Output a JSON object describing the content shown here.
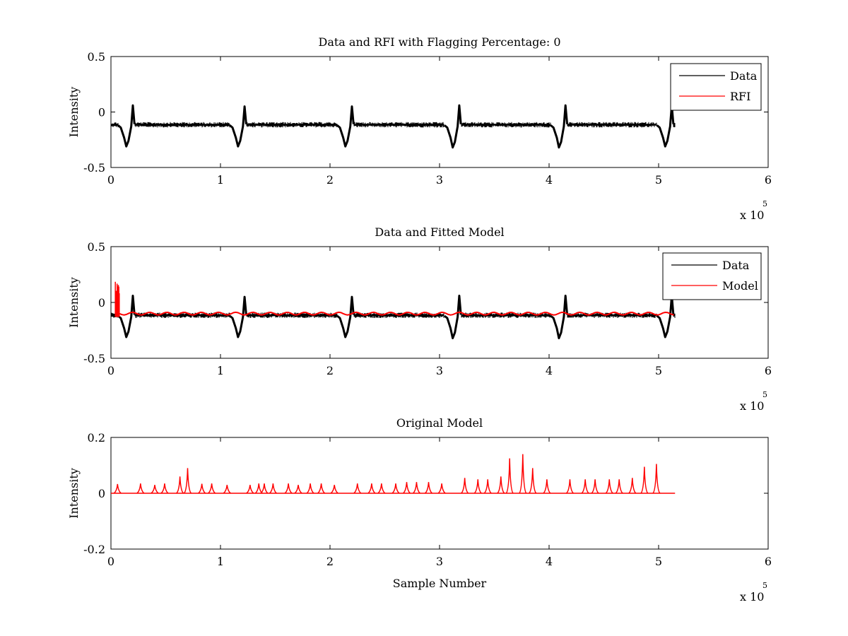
{
  "chart_data": [
    {
      "type": "line",
      "title": "Data and RFI with Flagging Percentage: 0",
      "xlabel": "",
      "ylabel": "Intensity",
      "xlim": [
        0,
        6
      ],
      "ylim": [
        -0.5,
        0.5
      ],
      "x_ticks": [
        "0",
        "1",
        "2",
        "3",
        "4",
        "5",
        "6"
      ],
      "y_ticks": [
        "-0.5",
        "0",
        "0.5"
      ],
      "x_multiplier": "x 10",
      "x_multiplier_exp": "5",
      "legend_position": "top-right",
      "legend": [
        "Data",
        "RFI"
      ],
      "series": [
        {
          "name": "Data",
          "color": "#000000",
          "baseline": -0.11,
          "noise_band": [
            -0.15,
            -0.08
          ],
          "x_end": 5.15,
          "excursions": [
            {
              "x": 0.14,
              "min": -0.31,
              "max": 0.06
            },
            {
              "x": 1.16,
              "min": -0.31,
              "max": 0.05
            },
            {
              "x": 2.14,
              "min": -0.31,
              "max": 0.05
            },
            {
              "x": 3.12,
              "min": -0.32,
              "max": 0.06
            },
            {
              "x": 4.09,
              "min": -0.32,
              "max": 0.06
            },
            {
              "x": 5.06,
              "min": -0.31,
              "max": 0.06
            }
          ]
        },
        {
          "name": "RFI",
          "color": "#ff0000",
          "values": []
        }
      ]
    },
    {
      "type": "line",
      "title": "Data and Fitted Model",
      "xlabel": "",
      "ylabel": "Intensity",
      "xlim": [
        0,
        6
      ],
      "ylim": [
        -0.5,
        0.5
      ],
      "x_ticks": [
        "0",
        "1",
        "2",
        "3",
        "4",
        "5",
        "6"
      ],
      "y_ticks": [
        "-0.5",
        "0",
        "0.5"
      ],
      "x_multiplier": "x 10",
      "x_multiplier_exp": "5",
      "legend_position": "top-right",
      "legend": [
        "Data",
        "Model"
      ],
      "series": [
        {
          "name": "Data",
          "color": "#000000",
          "baseline": -0.11,
          "noise_band": [
            -0.15,
            -0.08
          ],
          "x_end": 5.15,
          "excursions": [
            {
              "x": 0.14,
              "min": -0.31,
              "max": 0.06
            },
            {
              "x": 1.16,
              "min": -0.31,
              "max": 0.05
            },
            {
              "x": 2.14,
              "min": -0.31,
              "max": 0.05
            },
            {
              "x": 3.12,
              "min": -0.32,
              "max": 0.06
            },
            {
              "x": 4.09,
              "min": -0.32,
              "max": 0.06
            },
            {
              "x": 5.06,
              "min": -0.31,
              "max": 0.06
            }
          ]
        },
        {
          "name": "Model",
          "color": "#ff0000",
          "baseline": -0.1,
          "x_end": 5.15,
          "spike": {
            "x_range": [
              0.04,
              0.08
            ],
            "max": 0.2
          }
        }
      ]
    },
    {
      "type": "line",
      "title": "Original Model",
      "xlabel": "Sample Number",
      "ylabel": "Intensity",
      "xlim": [
        0,
        6
      ],
      "ylim": [
        -0.2,
        0.2
      ],
      "x_ticks": [
        "0",
        "1",
        "2",
        "3",
        "4",
        "5",
        "6"
      ],
      "y_ticks": [
        "-0.2",
        "0",
        "0.2"
      ],
      "x_multiplier": "x 10",
      "x_multiplier_exp": "5",
      "series": [
        {
          "name": "Model",
          "color": "#ff0000",
          "baseline": 0,
          "x_end": 5.15,
          "peaks": [
            {
              "x": 0.06,
              "y": 0.033
            },
            {
              "x": 0.27,
              "y": 0.035
            },
            {
              "x": 0.4,
              "y": 0.03
            },
            {
              "x": 0.49,
              "y": 0.035
            },
            {
              "x": 0.63,
              "y": 0.06
            },
            {
              "x": 0.7,
              "y": 0.09
            },
            {
              "x": 0.83,
              "y": 0.034
            },
            {
              "x": 0.92,
              "y": 0.035
            },
            {
              "x": 1.06,
              "y": 0.03
            },
            {
              "x": 1.27,
              "y": 0.03
            },
            {
              "x": 1.35,
              "y": 0.035
            },
            {
              "x": 1.4,
              "y": 0.035
            },
            {
              "x": 1.48,
              "y": 0.035
            },
            {
              "x": 1.62,
              "y": 0.035
            },
            {
              "x": 1.71,
              "y": 0.03
            },
            {
              "x": 1.82,
              "y": 0.035
            },
            {
              "x": 1.92,
              "y": 0.035
            },
            {
              "x": 2.04,
              "y": 0.03
            },
            {
              "x": 2.25,
              "y": 0.035
            },
            {
              "x": 2.38,
              "y": 0.035
            },
            {
              "x": 2.47,
              "y": 0.035
            },
            {
              "x": 2.6,
              "y": 0.035
            },
            {
              "x": 2.7,
              "y": 0.04
            },
            {
              "x": 2.79,
              "y": 0.04
            },
            {
              "x": 2.9,
              "y": 0.04
            },
            {
              "x": 3.02,
              "y": 0.035
            },
            {
              "x": 3.23,
              "y": 0.055
            },
            {
              "x": 3.35,
              "y": 0.05
            },
            {
              "x": 3.44,
              "y": 0.05
            },
            {
              "x": 3.56,
              "y": 0.06
            },
            {
              "x": 3.64,
              "y": 0.125
            },
            {
              "x": 3.76,
              "y": 0.14
            },
            {
              "x": 3.85,
              "y": 0.09
            },
            {
              "x": 3.98,
              "y": 0.05
            },
            {
              "x": 4.19,
              "y": 0.05
            },
            {
              "x": 4.33,
              "y": 0.05
            },
            {
              "x": 4.42,
              "y": 0.05
            },
            {
              "x": 4.55,
              "y": 0.05
            },
            {
              "x": 4.64,
              "y": 0.05
            },
            {
              "x": 4.76,
              "y": 0.055
            },
            {
              "x": 4.87,
              "y": 0.095
            },
            {
              "x": 4.98,
              "y": 0.105
            }
          ]
        }
      ]
    }
  ]
}
